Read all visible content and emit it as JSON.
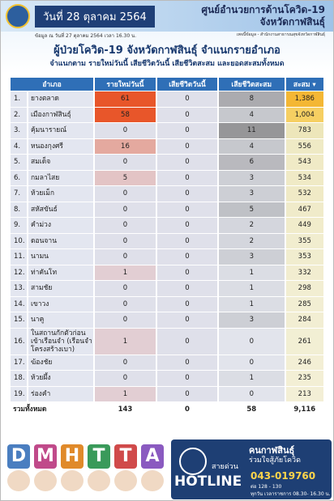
{
  "header": {
    "date": "วันที่ 28 ตุลาคม 2564",
    "org": "ศูนย์อำนวยการด้านโควิด-19",
    "province": "จังหวัดกาฬสินธุ์",
    "as_of": "ข้อมูล ณ วันที่ 27 ตุลาคม 2564 เวลา 16.30 น.",
    "source": "เพจนี้ข้อมูล - สำนักงานสาธารณสุขจังหวัดกาฬสินธุ์"
  },
  "title": "ผู้ป่วยโควิด-19 จังหวัดกาฬสินธุ์ จำแนกรายอำเภอ",
  "subtitle": "จำแนกตาม รายใหม่วันนี้ เสียชีวิตวันนี้ เสียชีวิตสะสม และยอดสะสมทั้งหมด",
  "table": {
    "columns": [
      "อำเภอ",
      "รายใหม่วันนี้",
      "เสียชีวิตวันนี้",
      "เสียชีวิตสะสม",
      "สะสม ▾"
    ],
    "rows": [
      [
        "1.",
        "ยางตลาด",
        "61",
        "0",
        "8",
        "1,386"
      ],
      [
        "2.",
        "เมืองกาฬสินธุ์",
        "58",
        "0",
        "4",
        "1,004"
      ],
      [
        "3.",
        "คุ้มนารายณ์",
        "0",
        "0",
        "11",
        "783"
      ],
      [
        "4.",
        "หนองกุงศรี",
        "16",
        "0",
        "4",
        "556"
      ],
      [
        "5.",
        "สมเด็จ",
        "0",
        "0",
        "6",
        "543"
      ],
      [
        "6.",
        "กมลาไสย",
        "5",
        "0",
        "3",
        "534"
      ],
      [
        "7.",
        "ห้วยเม็ก",
        "0",
        "0",
        "3",
        "532"
      ],
      [
        "8.",
        "สหัสขันธ์",
        "0",
        "0",
        "5",
        "467"
      ],
      [
        "9.",
        "คำม่วง",
        "0",
        "0",
        "2",
        "449"
      ],
      [
        "10.",
        "ดอนจาน",
        "0",
        "0",
        "2",
        "355"
      ],
      [
        "11.",
        "นามน",
        "0",
        "0",
        "3",
        "353"
      ],
      [
        "12.",
        "ท่าคันโท",
        "1",
        "0",
        "1",
        "332"
      ],
      [
        "13.",
        "สามชัย",
        "0",
        "0",
        "1",
        "298"
      ],
      [
        "14.",
        "เขาวง",
        "0",
        "0",
        "1",
        "285"
      ],
      [
        "15.",
        "นาคู",
        "0",
        "0",
        "3",
        "284"
      ],
      [
        "16.",
        "ในสถานกักตัวก่อนเข้าเรือนจำ (เรือนจำโครงสร้างเบา)",
        "1",
        "0",
        "0",
        "261"
      ],
      [
        "17.",
        "ฆ้องชัย",
        "0",
        "0",
        "0",
        "246"
      ],
      [
        "18.",
        "ห้วยผึ้ง",
        "0",
        "0",
        "1",
        "235"
      ],
      [
        "19.",
        "ร่องคำ",
        "1",
        "0",
        "0",
        "213"
      ]
    ],
    "total": [
      "รวมทั้งหมด",
      "143",
      "0",
      "58",
      "9,116"
    ]
  },
  "footer": {
    "dmhtta": [
      "D",
      "M",
      "H",
      "T",
      "T",
      "A"
    ],
    "hotline": {
      "line1": "คนกาฬสินธุ์",
      "line2": "ร่วมใจสู้ภัยโควิด",
      "label": "สายด่วน",
      "word": "HOTLINE",
      "phone": "043-019760",
      "ext": "ต่อ 128 - 130",
      "hours": "ทุกวัน เวลาราชการ 08.30- 16.30 น."
    }
  }
}
